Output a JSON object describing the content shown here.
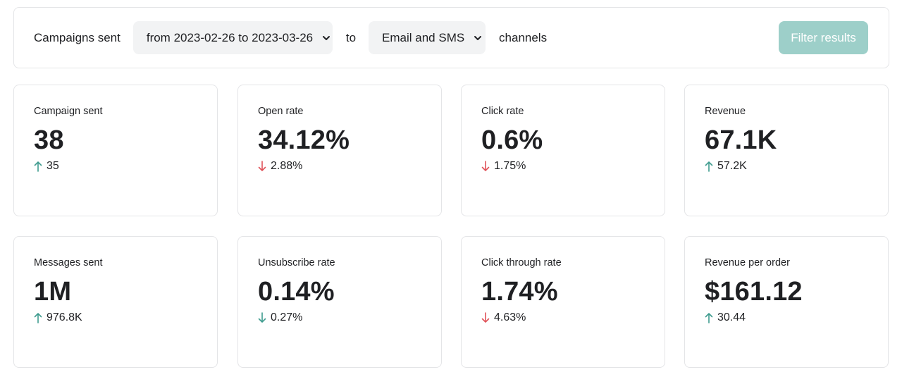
{
  "filter_bar": {
    "prefix": "Campaigns sent",
    "date_range": "from 2023-02-26 to 2023-03-26",
    "to": "to",
    "channel": "Email and SMS",
    "suffix": "channels",
    "filter_button": "Filter results"
  },
  "colors": {
    "up": "#3f9c8f",
    "down_red": "#e0535a",
    "down_teal": "#3f9c8f",
    "button": "#9dcfc9"
  },
  "cards": [
    {
      "label": "Campaign sent",
      "value": "38",
      "delta": "35",
      "direction": "up",
      "arrow_icon": "arrow-up-icon"
    },
    {
      "label": "Open rate",
      "value": "34.12%",
      "delta": "2.88%",
      "direction": "down",
      "arrow_icon": "arrow-down-icon"
    },
    {
      "label": "Click rate",
      "value": "0.6%",
      "delta": "1.75%",
      "direction": "down",
      "arrow_icon": "arrow-down-icon"
    },
    {
      "label": "Revenue",
      "value": "67.1K",
      "delta": "57.2K",
      "direction": "up",
      "arrow_icon": "arrow-up-icon"
    },
    {
      "label": "Messages sent",
      "value": "1M",
      "delta": "976.8K",
      "direction": "up",
      "arrow_icon": "arrow-up-icon"
    },
    {
      "label": "Unsubscribe rate",
      "value": "0.14%",
      "delta": "0.27%",
      "direction": "down-good",
      "arrow_icon": "arrow-down-icon"
    },
    {
      "label": "Click through rate",
      "value": "1.74%",
      "delta": "4.63%",
      "direction": "down",
      "arrow_icon": "arrow-down-icon"
    },
    {
      "label": "Revenue per order",
      "value": "$161.12",
      "delta": "30.44",
      "direction": "up",
      "arrow_icon": "arrow-up-icon"
    }
  ]
}
